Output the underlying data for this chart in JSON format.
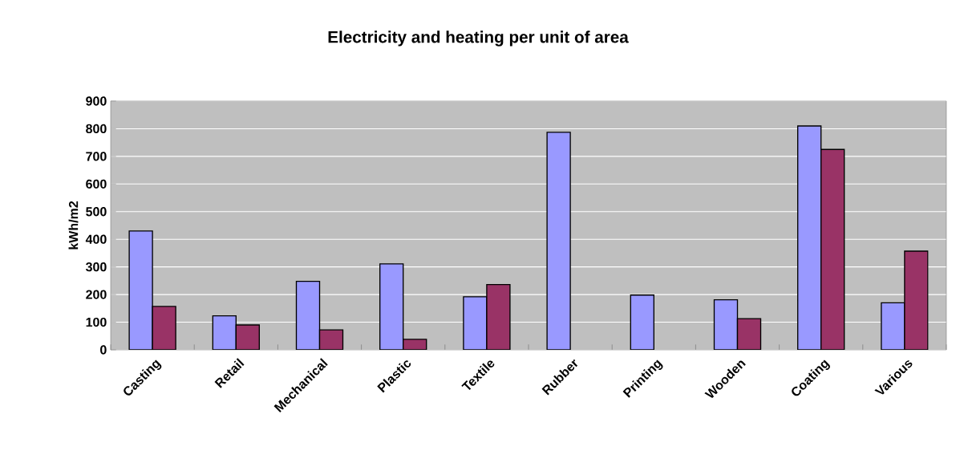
{
  "chart_data": {
    "type": "bar",
    "title": "Electricity and heating per unit of area",
    "ylabel": "kWh/m2",
    "categories": [
      "Casting",
      "Retail",
      "Mechanical",
      "Plastic",
      "Textile",
      "Rubber",
      "Printing",
      "Wooden",
      "Coating",
      "Various"
    ],
    "series": [
      {
        "color": "#9999ff",
        "values": [
          430,
          123,
          248,
          311,
          192,
          787,
          198,
          181,
          810,
          170
        ]
      },
      {
        "color": "#993366",
        "values": [
          157,
          90,
          72,
          38,
          236,
          null,
          null,
          113,
          725,
          357
        ]
      }
    ],
    "ylim": [
      0,
      900
    ],
    "yticks": [
      0,
      100,
      200,
      300,
      400,
      500,
      600,
      700,
      800,
      900
    ],
    "grid": "y"
  }
}
